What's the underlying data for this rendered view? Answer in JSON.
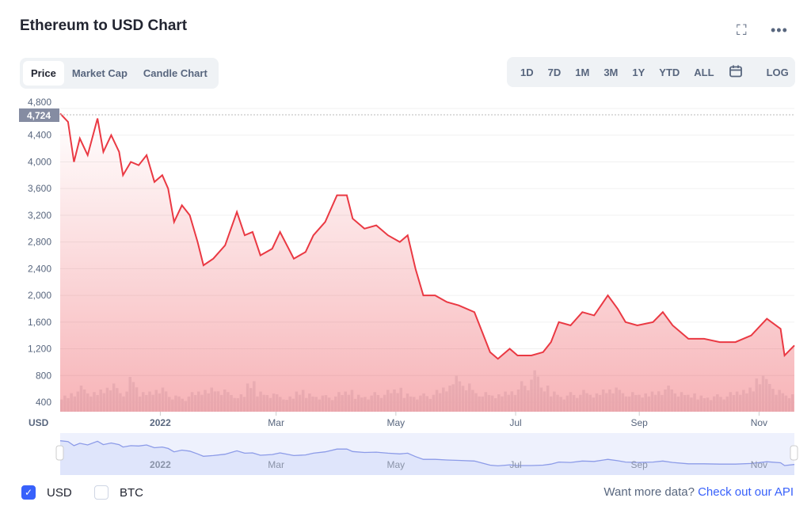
{
  "header": {
    "title": "Ethereum to USD Chart",
    "fullscreen_icon": "expand-icon",
    "more_icon": "more-horizontal-icon"
  },
  "tabs": [
    {
      "label": "Price",
      "active": true
    },
    {
      "label": "Market Cap"
    },
    {
      "label": "Candle Chart"
    }
  ],
  "ranges": [
    "1D",
    "7D",
    "1M",
    "3M",
    "1Y",
    "YTD",
    "ALL"
  ],
  "calendar_icon": "calendar-icon",
  "log_label": "LOG",
  "colors": {
    "line": "#ea3943",
    "accent": "#3861fb",
    "nav_line": "#8c9be8",
    "nav_fill": "#dfe5fb"
  },
  "chart_data": {
    "type": "line",
    "title": "Ethereum to USD Chart",
    "ylabel": "USD",
    "current_label": "4,724",
    "ylim": [
      400,
      4800
    ],
    "yticks": [
      {
        "v": 4800,
        "label": "4,800"
      },
      {
        "v": 4400,
        "label": "4,400"
      },
      {
        "v": 4000,
        "label": "4,000"
      },
      {
        "v": 3600,
        "label": "3,600"
      },
      {
        "v": 3200,
        "label": "3,200"
      },
      {
        "v": 2800,
        "label": "2,800"
      },
      {
        "v": 2400,
        "label": "2,400"
      },
      {
        "v": 2000,
        "label": "2,000"
      },
      {
        "v": 1600,
        "label": "1,600"
      },
      {
        "v": 1200,
        "label": "1,200"
      },
      {
        "v": 800,
        "label": "800"
      },
      {
        "v": 400,
        "label": "400"
      }
    ],
    "xunit": "days since 2021-11-10",
    "xlim": [
      0,
      374
    ],
    "xticks": [
      {
        "d": 51,
        "label": "2022",
        "bold": true
      },
      {
        "d": 110,
        "label": "Mar"
      },
      {
        "d": 171,
        "label": "May"
      },
      {
        "d": 232,
        "label": "Jul"
      },
      {
        "d": 295,
        "label": "Sep"
      },
      {
        "d": 356,
        "label": "Nov"
      }
    ],
    "x": [
      0,
      4,
      7,
      10,
      14,
      19,
      22,
      26,
      30,
      32,
      36,
      40,
      44,
      48,
      52,
      55,
      58,
      62,
      66,
      70,
      73,
      78,
      84,
      90,
      94,
      98,
      102,
      108,
      112,
      119,
      125,
      129,
      135,
      141,
      146,
      149,
      155,
      161,
      167,
      173,
      177,
      181,
      185,
      191,
      197,
      203,
      211,
      215,
      219,
      223,
      229,
      233,
      240,
      246,
      250,
      254,
      260,
      266,
      272,
      279,
      284,
      288,
      294,
      302,
      307,
      312,
      320,
      328,
      336,
      344,
      352,
      360,
      367,
      369,
      374
    ],
    "y": [
      4724,
      4600,
      4000,
      4350,
      4100,
      4650,
      4150,
      4400,
      4150,
      3800,
      4000,
      3950,
      4100,
      3700,
      3800,
      3600,
      3100,
      3350,
      3200,
      2800,
      2450,
      2550,
      2750,
      3250,
      2900,
      2950,
      2600,
      2700,
      2950,
      2550,
      2650,
      2900,
      3100,
      3500,
      3500,
      3150,
      3000,
      3050,
      2900,
      2800,
      2900,
      2400,
      2000,
      2000,
      1900,
      1850,
      1750,
      1450,
      1150,
      1050,
      1200,
      1100,
      1100,
      1150,
      1300,
      1600,
      1550,
      1750,
      1700,
      2000,
      1800,
      1600,
      1550,
      1600,
      1750,
      1550,
      1350,
      1350,
      1300,
      1300,
      1400,
      1650,
      1500,
      1100,
      1250
    ],
    "volume_relative": [
      0.4,
      0.5,
      0.6,
      0.45,
      0.55,
      0.7,
      0.5,
      0.8,
      0.45,
      0.5,
      0.6,
      0.4,
      0.35,
      0.45,
      0.5,
      0.6,
      0.55,
      0.45,
      0.4,
      0.7,
      0.5,
      0.45,
      0.4,
      0.35,
      0.5,
      0.45,
      0.4,
      0.38,
      0.45,
      0.5,
      0.42,
      0.4,
      0.45,
      0.5,
      0.55,
      0.45,
      0.4,
      0.42,
      0.5,
      0.6,
      0.9,
      0.7,
      0.5,
      0.45,
      0.4,
      0.5,
      0.55,
      0.7,
      0.95,
      0.6,
      0.5,
      0.4,
      0.45,
      0.5,
      0.42,
      0.55,
      0.6,
      0.5,
      0.45,
      0.42,
      0.5,
      0.55,
      0.6,
      0.45,
      0.42,
      0.4,
      0.38,
      0.4,
      0.45,
      0.5,
      0.6,
      0.9,
      0.75,
      0.5,
      0.4
    ]
  },
  "footer": {
    "usd_label": "USD",
    "usd_checked": true,
    "btc_label": "BTC",
    "btc_checked": false,
    "prompt": "Want more data?",
    "api_link": "Check out our API"
  }
}
